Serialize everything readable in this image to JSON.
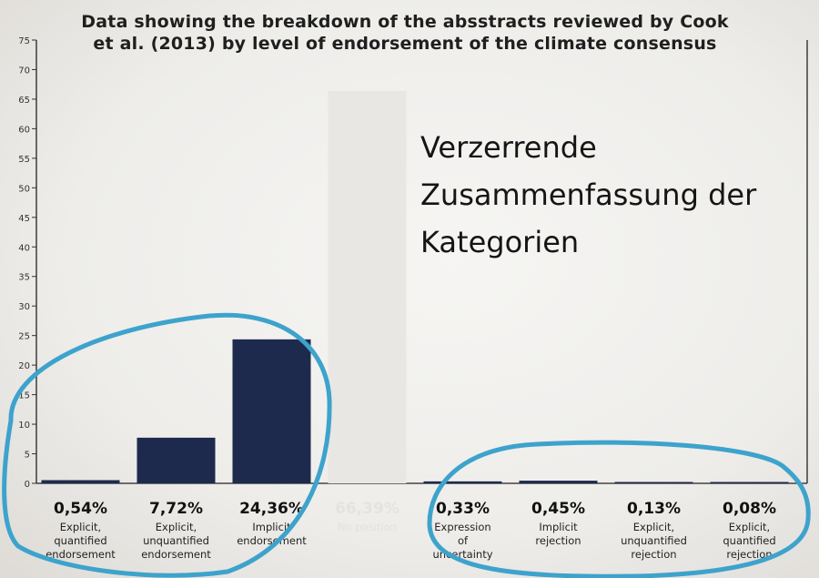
{
  "title_lines": [
    "Data showing the breakdown of the absstracts reviewed by Cook",
    "et al. (2013) by level of endorsement of the climate consensus"
  ],
  "overlay_lines": [
    "Verzerrende",
    "Zusammenfassung der",
    "Kategorien"
  ],
  "colors": {
    "bar": "#1d2a4d",
    "faded_bar": "#e8e7e4",
    "circle": "#3da3cc"
  },
  "chart_data": {
    "type": "bar",
    "ylim": [
      0,
      75
    ],
    "yticks": [
      0,
      5,
      10,
      15,
      20,
      25,
      30,
      35,
      40,
      45,
      50,
      55,
      60,
      65,
      70,
      75
    ],
    "grid": false,
    "categories": [
      {
        "lines": [
          "Explicit,",
          "quantified",
          "endorsement"
        ],
        "value": 0.54,
        "label": "0,54%",
        "faded": false
      },
      {
        "lines": [
          "Explicit,",
          "unquantified",
          "endorsement"
        ],
        "value": 7.72,
        "label": "7,72%",
        "faded": false
      },
      {
        "lines": [
          "Implicit",
          "endorsement"
        ],
        "value": 24.36,
        "label": "24,36%",
        "faded": false
      },
      {
        "lines": [
          "No position"
        ],
        "value": 66.39,
        "label": "66,39%",
        "faded": true
      },
      {
        "lines": [
          "Expression",
          "of",
          "uncertainty"
        ],
        "value": 0.33,
        "label": "0,33%",
        "faded": false
      },
      {
        "lines": [
          "Implicit",
          "rejection"
        ],
        "value": 0.45,
        "label": "0,45%",
        "faded": false
      },
      {
        "lines": [
          "Explicit,",
          "unquantified",
          "rejection"
        ],
        "value": 0.13,
        "label": "0,13%",
        "faded": false
      },
      {
        "lines": [
          "Explicit,",
          "quantified",
          "rejection"
        ],
        "value": 0.08,
        "label": "0,08%",
        "faded": false
      }
    ]
  }
}
